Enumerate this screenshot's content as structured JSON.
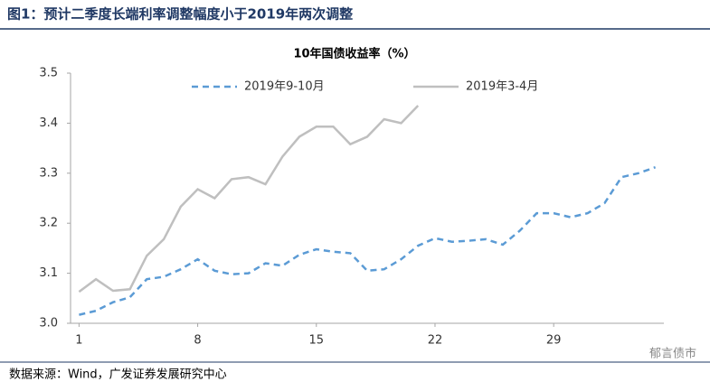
{
  "header": {
    "title": "图1：预计二季度长端利率调整幅度小于2019年两次调整"
  },
  "chart_data": {
    "type": "line",
    "title": "10年国债收益率（%）",
    "x": [
      1,
      2,
      3,
      4,
      5,
      6,
      7,
      8,
      9,
      10,
      11,
      12,
      13,
      14,
      15,
      16,
      17,
      18,
      19,
      20,
      21,
      22,
      23,
      24,
      25,
      26,
      27,
      28,
      29,
      30,
      31,
      32,
      33,
      34,
      35
    ],
    "series": [
      {
        "name": "2019年9-10月",
        "color": "#5b9bd5",
        "dash": true,
        "values": [
          3.017,
          3.025,
          3.042,
          3.052,
          3.088,
          3.093,
          3.108,
          3.128,
          3.105,
          3.098,
          3.1,
          3.12,
          3.115,
          3.137,
          3.148,
          3.143,
          3.14,
          3.105,
          3.108,
          3.128,
          3.155,
          3.17,
          3.163,
          3.165,
          3.168,
          3.157,
          3.185,
          3.22,
          3.22,
          3.212,
          3.22,
          3.24,
          3.292,
          3.3,
          3.312
        ]
      },
      {
        "name": "2019年3-4月",
        "color": "#bfbfbf",
        "dash": false,
        "values": [
          3.063,
          3.088,
          3.065,
          3.068,
          3.135,
          3.168,
          3.233,
          3.268,
          3.25,
          3.288,
          3.292,
          3.278,
          3.333,
          3.373,
          3.393,
          3.393,
          3.358,
          3.373,
          3.408,
          3.4,
          3.435,
          null,
          null,
          null,
          null,
          null,
          null,
          null,
          null,
          null,
          null,
          null,
          null,
          null,
          null
        ]
      }
    ],
    "xlim": [
      0.5,
      35.5
    ],
    "xticks": [
      1,
      8,
      15,
      22,
      29
    ],
    "ylim": [
      3.0,
      3.5
    ],
    "yticks": [
      {
        "value": 3.0,
        "label": "3.0"
      },
      3.1,
      3.2,
      3.3,
      3.4,
      3.5
    ],
    "grid": false,
    "legend": "top"
  },
  "footer": {
    "source": "数据来源：Wind，广发证券发展研究中心",
    "watermark": "郁言债市"
  }
}
